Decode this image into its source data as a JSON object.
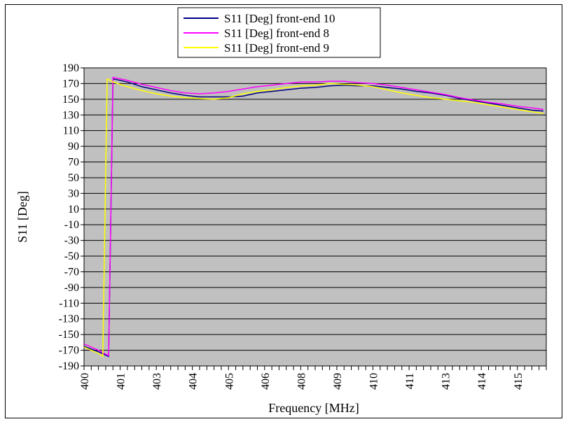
{
  "chart_data": {
    "type": "line",
    "xlabel": "Frequency [MHz]",
    "ylabel": "S11 [Deg]",
    "ylim": [
      -190,
      190
    ],
    "xlim": [
      400,
      416
    ],
    "yticks": [
      190,
      170,
      150,
      130,
      110,
      90,
      70,
      50,
      30,
      10,
      -10,
      -30,
      -50,
      -70,
      -90,
      -110,
      -130,
      -150,
      -170,
      -190
    ],
    "xtick_labels": [
      "400",
      "401",
      "403",
      "404",
      "405",
      "406",
      "408",
      "409",
      "410",
      "411",
      "413",
      "414",
      "415"
    ],
    "xtick_values": [
      400,
      401.25,
      402.5,
      403.75,
      405,
      406.25,
      407.5,
      408.75,
      410,
      411.25,
      412.5,
      413.75,
      415
    ],
    "grid": true,
    "legend_position": "top-center",
    "plot_background": "#c0c0c0",
    "series": [
      {
        "name": "S11 [Deg] front-end 10",
        "color": "#000080",
        "x": [
          400,
          400.5,
          400.85,
          401.0,
          401.5,
          402,
          402.5,
          403,
          403.5,
          404,
          404.5,
          405,
          405.5,
          406,
          406.5,
          407,
          407.5,
          408,
          408.5,
          409,
          409.5,
          410,
          410.5,
          411,
          411.5,
          412,
          412.5,
          413,
          413.5,
          414,
          414.5,
          415,
          415.5,
          415.9
        ],
        "values": [
          -165,
          -172,
          -178,
          176,
          172,
          166,
          162,
          158,
          155,
          153,
          153,
          153,
          154,
          158,
          160,
          162,
          164,
          165,
          167,
          168,
          167,
          167,
          165,
          163,
          160,
          158,
          155,
          151,
          148,
          145,
          142,
          139,
          136,
          135
        ]
      },
      {
        "name": "S11 [Deg] front-end 8",
        "color": "#ff00ff",
        "x": [
          400,
          400.5,
          400.85,
          401.0,
          401.5,
          402,
          402.5,
          403,
          403.5,
          404,
          404.5,
          405,
          405.5,
          406,
          406.5,
          407,
          407.5,
          408,
          408.5,
          409,
          409.5,
          410,
          410.5,
          411,
          411.5,
          412,
          412.5,
          413,
          413.5,
          414,
          414.5,
          415,
          415.5,
          415.9
        ],
        "values": [
          -162,
          -170,
          -177,
          178,
          174,
          169,
          165,
          161,
          158,
          157,
          158,
          160,
          163,
          166,
          168,
          170,
          172,
          172,
          173,
          173,
          171,
          170,
          168,
          165,
          162,
          159,
          156,
          152,
          149,
          146,
          144,
          141,
          139,
          137
        ]
      },
      {
        "name": "S11 [Deg] front-end 9",
        "color": "#ffff00",
        "x": [
          400,
          400.5,
          400.65,
          400.8,
          401.0,
          401.5,
          402,
          402.5,
          403,
          403.5,
          404,
          404.5,
          405,
          405.5,
          406,
          406.5,
          407,
          407.5,
          408,
          408.5,
          409,
          409.5,
          410,
          410.5,
          411,
          411.5,
          412,
          412.5,
          413,
          413.5,
          414,
          414.5,
          415,
          415.5,
          415.9
        ],
        "values": [
          -166,
          -174,
          -178,
          176,
          172,
          166,
          161,
          157,
          154,
          152,
          151,
          150,
          152,
          157,
          160,
          162,
          165,
          167,
          168,
          170,
          169,
          168,
          166,
          162,
          158,
          155,
          152,
          150,
          148,
          146,
          143,
          140,
          137,
          134,
          132
        ]
      }
    ]
  }
}
